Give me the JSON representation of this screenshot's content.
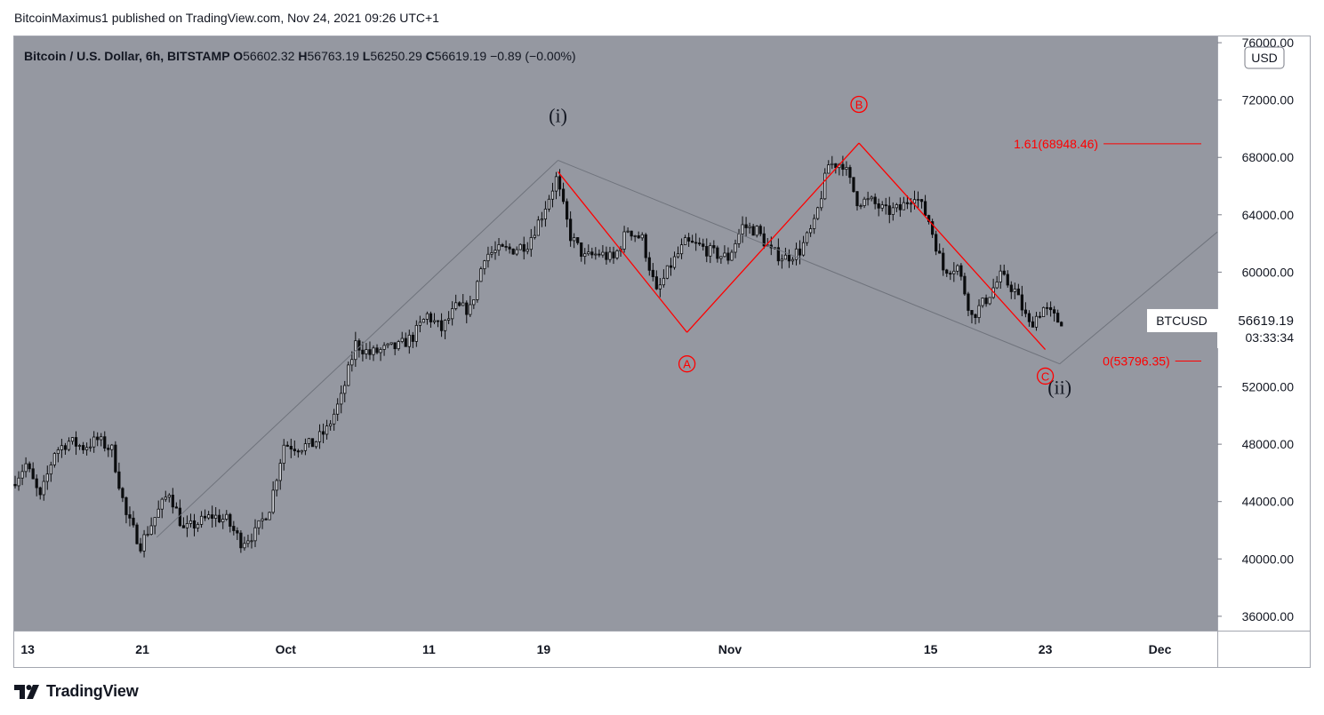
{
  "header": {
    "publisher_text": "BitcoinMaximus1 published on TradingView.com, Nov 24, 2021 09:26 UTC+1"
  },
  "footer": {
    "brand": "TradingView",
    "logo_icon": "tradingview-logo-icon"
  },
  "colors": {
    "pane_bg": "#9598a1",
    "candle": "#0b0c0e",
    "wave_red": "#ff0000",
    "guide_gray": "#6f737c",
    "axis_bg": "#ffffff",
    "axis_border": "#a3a6af"
  },
  "chart_data": {
    "type": "candlestick",
    "symbol_line": {
      "instrument": "Bitcoin / U.S. Dollar, 6h, BITSTAMP",
      "o_label": "O",
      "o_value": "56602.32",
      "h_label": "H",
      "h_value": "56763.19",
      "l_label": "L",
      "l_value": "56250.29",
      "c_label": "C",
      "c_value": "56619.19",
      "change": "−0.89 (−0.00%)"
    },
    "currency_badge": "USD",
    "x_range": [
      "2021-09-12",
      "2021-12-05"
    ],
    "ylim": [
      35000,
      76500
    ],
    "y_ticks": [
      {
        "value": 36000,
        "label": "36000.00"
      },
      {
        "value": 40000,
        "label": "40000.00"
      },
      {
        "value": 44000,
        "label": "44000.00"
      },
      {
        "value": 48000,
        "label": "48000.00"
      },
      {
        "value": 52000,
        "label": "52000.00"
      },
      {
        "value": 56000,
        "label": "56000.00"
      },
      {
        "value": 60000,
        "label": "60000.00"
      },
      {
        "value": 64000,
        "label": "64000.00"
      },
      {
        "value": 68000,
        "label": "68000.00"
      },
      {
        "value": 72000,
        "label": "72000.00"
      },
      {
        "value": 76000,
        "label": "76000.00"
      }
    ],
    "x_ticks": [
      {
        "date": "2021-09-13",
        "label": "13"
      },
      {
        "date": "2021-09-21",
        "label": "21"
      },
      {
        "date": "2021-10-01",
        "label": "Oct"
      },
      {
        "date": "2021-10-11",
        "label": "11"
      },
      {
        "date": "2021-10-19",
        "label": "19"
      },
      {
        "date": "2021-11-01",
        "label": "Nov"
      },
      {
        "date": "2021-11-15",
        "label": "15"
      },
      {
        "date": "2021-11-23",
        "label": "23"
      },
      {
        "date": "2021-12-01",
        "label": "Dec"
      }
    ],
    "price_path": [
      [
        "2021-09-12",
        45200
      ],
      [
        "2021-09-13",
        46600
      ],
      [
        "2021-09-14",
        44200
      ],
      [
        "2021-09-15",
        47500
      ],
      [
        "2021-09-16",
        48200
      ],
      [
        "2021-09-17",
        47800
      ],
      [
        "2021-09-18",
        48300
      ],
      [
        "2021-09-19",
        47600
      ],
      [
        "2021-09-20",
        43000
      ],
      [
        "2021-09-21",
        41000
      ],
      [
        "2021-09-22",
        42900
      ],
      [
        "2021-09-23",
        44700
      ],
      [
        "2021-09-24",
        42000
      ],
      [
        "2021-09-25",
        42500
      ],
      [
        "2021-09-26",
        43000
      ],
      [
        "2021-09-27",
        42700
      ],
      [
        "2021-09-28",
        41200
      ],
      [
        "2021-09-29",
        41800
      ],
      [
        "2021-09-30",
        43600
      ],
      [
        "2021-10-01",
        48000
      ],
      [
        "2021-10-02",
        47800
      ],
      [
        "2021-10-03",
        48000
      ],
      [
        "2021-10-04",
        49000
      ],
      [
        "2021-10-05",
        51200
      ],
      [
        "2021-10-06",
        55000
      ],
      [
        "2021-10-07",
        54300
      ],
      [
        "2021-10-08",
        54600
      ],
      [
        "2021-10-09",
        54800
      ],
      [
        "2021-10-10",
        55500
      ],
      [
        "2021-10-11",
        57000
      ],
      [
        "2021-10-12",
        56000
      ],
      [
        "2021-10-13",
        57500
      ],
      [
        "2021-10-14",
        57400
      ],
      [
        "2021-10-15",
        61200
      ],
      [
        "2021-10-16",
        61500
      ],
      [
        "2021-10-17",
        61600
      ],
      [
        "2021-10-18",
        62000
      ],
      [
        "2021-10-19",
        64000
      ],
      [
        "2021-10-20",
        66500
      ],
      [
        "2021-10-21",
        62500
      ],
      [
        "2021-10-22",
        61000
      ],
      [
        "2021-10-23",
        61300
      ],
      [
        "2021-10-24",
        60900
      ],
      [
        "2021-10-25",
        63000
      ],
      [
        "2021-10-26",
        62300
      ],
      [
        "2021-10-27",
        58500
      ],
      [
        "2021-10-28",
        60500
      ],
      [
        "2021-10-29",
        62000
      ],
      [
        "2021-10-30",
        61800
      ],
      [
        "2021-10-31",
        61300
      ],
      [
        "2021-11-01",
        61000
      ],
      [
        "2021-11-02",
        63200
      ],
      [
        "2021-11-03",
        62900
      ],
      [
        "2021-11-04",
        61400
      ],
      [
        "2021-11-05",
        61000
      ],
      [
        "2021-11-06",
        61500
      ],
      [
        "2021-11-07",
        63300
      ],
      [
        "2021-11-08",
        67500
      ],
      [
        "2021-11-09",
        67600
      ],
      [
        "2021-11-10",
        65000
      ],
      [
        "2021-11-11",
        64900
      ],
      [
        "2021-11-12",
        64200
      ],
      [
        "2021-11-13",
        64400
      ],
      [
        "2021-11-14",
        65500
      ],
      [
        "2021-11-15",
        63600
      ],
      [
        "2021-11-16",
        60200
      ],
      [
        "2021-11-17",
        60400
      ],
      [
        "2021-11-18",
        56900
      ],
      [
        "2021-11-19",
        58100
      ],
      [
        "2021-11-20",
        59700
      ],
      [
        "2021-11-21",
        58700
      ],
      [
        "2021-11-22",
        56300
      ],
      [
        "2021-11-23",
        57500
      ],
      [
        "2021-11-24",
        56619
      ]
    ],
    "grey_zigzag": [
      [
        "2021-09-22",
        41500
      ],
      [
        "2021-10-20",
        67800
      ],
      [
        "2021-11-24",
        53600
      ],
      [
        "2021-12-05",
        62800
      ]
    ],
    "red_zigzag": [
      [
        "2021-10-20",
        67000
      ],
      [
        "2021-10-29",
        55800
      ],
      [
        "2021-11-10",
        69000
      ],
      [
        "2021-11-23",
        54600
      ]
    ],
    "wave_labels": [
      {
        "text": "(i)",
        "date": "2021-10-20",
        "price": 70900,
        "color": "#131722",
        "circled": false
      },
      {
        "text": "(ii)",
        "date": "2021-11-24",
        "price": 51950,
        "color": "#131722",
        "circled": false
      },
      {
        "text": "A",
        "date": "2021-10-29",
        "price": 53600,
        "color": "#ff0000",
        "circled": true
      },
      {
        "text": "B",
        "date": "2021-11-10",
        "price": 71700,
        "color": "#ff0000",
        "circled": true
      },
      {
        "text": "C",
        "date": "2021-11-23",
        "price": 52750,
        "color": "#ff0000",
        "circled": true
      }
    ],
    "fib_levels": [
      {
        "label": "1.61(68948.46)",
        "value": 68948.46,
        "start": "2021-11-19"
      },
      {
        "label": "0(53796.35)",
        "value": 53796.35,
        "start": "2021-11-24"
      }
    ],
    "last_price_badge": {
      "symbol": "BTCUSD",
      "price_label": "56619.19",
      "countdown": "03:33:34",
      "value": 56619.19
    }
  }
}
